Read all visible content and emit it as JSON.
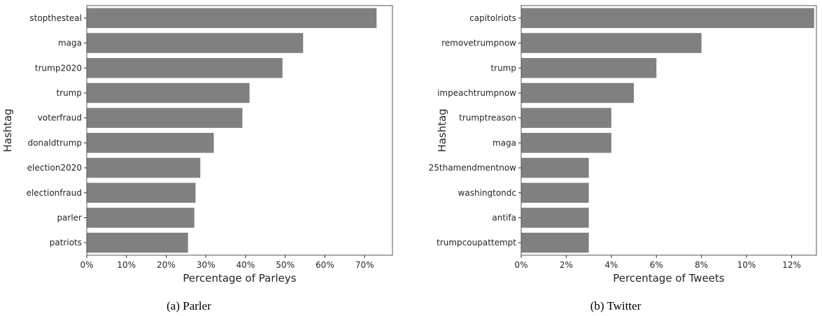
{
  "chart_data": [
    {
      "type": "bar",
      "orientation": "horizontal",
      "categories": [
        "stopthesteal",
        "maga",
        "trump2020",
        "trump",
        "voterfraud",
        "donaldtrump",
        "election2020",
        "electionfraud",
        "parler",
        "patriots"
      ],
      "values": [
        73,
        54.5,
        49.3,
        41,
        39.2,
        32,
        28.6,
        27.4,
        27.1,
        25.5
      ],
      "xlabel": "Percentage of Parleys",
      "ylabel": "Hashtag",
      "xlim": [
        0,
        77
      ],
      "xticks": [
        0,
        10,
        20,
        30,
        40,
        50,
        60,
        70
      ],
      "xtick_suffix": "%",
      "bar_color": "#808080",
      "grid": false,
      "caption": "(a) Parler"
    },
    {
      "type": "bar",
      "orientation": "horizontal",
      "categories": [
        "capitolriots",
        "removetrumpnow",
        "trump",
        "impeachtrumpnow",
        "trumptreason",
        "maga",
        "25thamendmentnow",
        "washingtondc",
        "antifa",
        "trumpcoupattempt"
      ],
      "values": [
        13,
        8,
        6,
        5,
        4,
        4,
        3,
        3,
        3,
        3
      ],
      "xlabel": "Percentage of Tweets",
      "ylabel": "Hashtag",
      "xlim": [
        0,
        13.1
      ],
      "xticks": [
        0,
        2,
        4,
        6,
        8,
        10,
        12
      ],
      "xtick_suffix": "%",
      "bar_color": "#808080",
      "grid": false,
      "caption": "(b) Twitter"
    }
  ]
}
